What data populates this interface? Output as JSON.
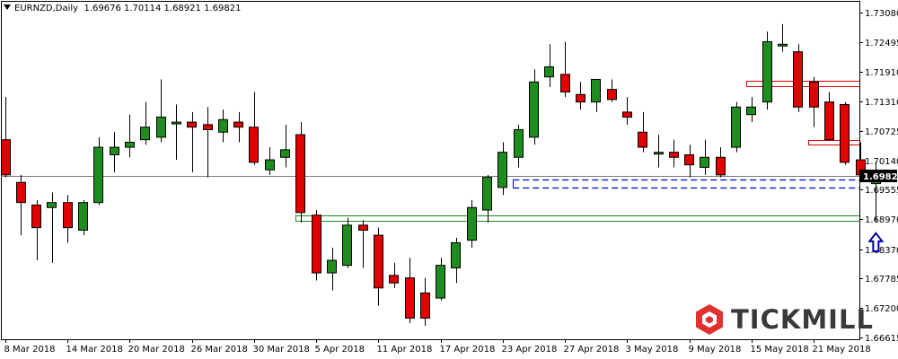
{
  "header": {
    "symbol": "EURNZD,Daily",
    "ohlc": "1.69676 1.70114 1.68921 1.69821"
  },
  "logo": {
    "text": "TICKMILL"
  },
  "colors": {
    "bull": "#1e8c1e",
    "bear": "#e00000",
    "grid": "#000000",
    "resistance": "#e00000",
    "pivot": "#0000cc",
    "support": "#1e8c1e",
    "arrow": "#0000aa",
    "price_box": "#000000"
  },
  "chart_data": {
    "type": "candlestick",
    "title": "",
    "xlabel": "",
    "ylabel": "",
    "ylim": [
      1.6645,
      1.7345
    ],
    "y_ticks": [
      "1.73080",
      "1.72495",
      "1.71910",
      "1.71310",
      "1.70725",
      "1.70140",
      "1.69555",
      "1.68970",
      "1.68370",
      "1.67785",
      "1.67200",
      "1.66615"
    ],
    "x_ticks": [
      {
        "label": "8 Mar 2018",
        "index": 0
      },
      {
        "label": "14 Mar 2018",
        "index": 4
      },
      {
        "label": "20 Mar 2018",
        "index": 8
      },
      {
        "label": "26 Mar 2018",
        "index": 12
      },
      {
        "label": "30 Mar 2018",
        "index": 16
      },
      {
        "label": "5 Apr 2018",
        "index": 20
      },
      {
        "label": "11 Apr 2018",
        "index": 24
      },
      {
        "label": "17 Apr 2018",
        "index": 28
      },
      {
        "label": "23 Apr 2018",
        "index": 32
      },
      {
        "label": "27 Apr 2018",
        "index": 36
      },
      {
        "label": "3 May 2018",
        "index": 40
      },
      {
        "label": "9 May 2018",
        "index": 44
      },
      {
        "label": "15 May 2018",
        "index": 48
      },
      {
        "label": "21 May 2018",
        "index": 52
      }
    ],
    "current_price": "1.69821",
    "candles": [
      {
        "o": 1.7055,
        "h": 1.714,
        "l": 1.698,
        "c": 1.6985
      },
      {
        "o": 1.697,
        "h": 1.6985,
        "l": 1.6865,
        "c": 1.693
      },
      {
        "o": 1.6925,
        "h": 1.6935,
        "l": 1.6815,
        "c": 1.688
      },
      {
        "o": 1.692,
        "h": 1.695,
        "l": 1.681,
        "c": 1.693
      },
      {
        "o": 1.693,
        "h": 1.6945,
        "l": 1.685,
        "c": 1.688
      },
      {
        "o": 1.6875,
        "h": 1.6935,
        "l": 1.6865,
        "c": 1.693
      },
      {
        "o": 1.693,
        "h": 1.706,
        "l": 1.6925,
        "c": 1.704
      },
      {
        "o": 1.7025,
        "h": 1.707,
        "l": 1.699,
        "c": 1.704
      },
      {
        "o": 1.704,
        "h": 1.7105,
        "l": 1.702,
        "c": 1.705
      },
      {
        "o": 1.7055,
        "h": 1.713,
        "l": 1.7045,
        "c": 1.708
      },
      {
        "o": 1.706,
        "h": 1.7175,
        "l": 1.705,
        "c": 1.71
      },
      {
        "o": 1.709,
        "h": 1.7125,
        "l": 1.7015,
        "c": 1.709
      },
      {
        "o": 1.709,
        "h": 1.711,
        "l": 1.699,
        "c": 1.708
      },
      {
        "o": 1.7085,
        "h": 1.712,
        "l": 1.698,
        "c": 1.7075
      },
      {
        "o": 1.707,
        "h": 1.7115,
        "l": 1.705,
        "c": 1.7095
      },
      {
        "o": 1.709,
        "h": 1.711,
        "l": 1.705,
        "c": 1.708
      },
      {
        "o": 1.708,
        "h": 1.715,
        "l": 1.7005,
        "c": 1.701
      },
      {
        "o": 1.6995,
        "h": 1.704,
        "l": 1.6985,
        "c": 1.7015
      },
      {
        "o": 1.702,
        "h": 1.7085,
        "l": 1.7,
        "c": 1.7035
      },
      {
        "o": 1.7065,
        "h": 1.709,
        "l": 1.689,
        "c": 1.691
      },
      {
        "o": 1.6905,
        "h": 1.6915,
        "l": 1.6775,
        "c": 1.679
      },
      {
        "o": 1.679,
        "h": 1.684,
        "l": 1.6755,
        "c": 1.6815
      },
      {
        "o": 1.6805,
        "h": 1.69,
        "l": 1.68,
        "c": 1.6885
      },
      {
        "o": 1.6885,
        "h": 1.6895,
        "l": 1.68,
        "c": 1.6875
      },
      {
        "o": 1.6865,
        "h": 1.688,
        "l": 1.6725,
        "c": 1.676
      },
      {
        "o": 1.6785,
        "h": 1.681,
        "l": 1.676,
        "c": 1.677
      },
      {
        "o": 1.678,
        "h": 1.682,
        "l": 1.669,
        "c": 1.67
      },
      {
        "o": 1.675,
        "h": 1.678,
        "l": 1.6685,
        "c": 1.67
      },
      {
        "o": 1.674,
        "h": 1.682,
        "l": 1.6735,
        "c": 1.6805
      },
      {
        "o": 1.68,
        "h": 1.686,
        "l": 1.677,
        "c": 1.685
      },
      {
        "o": 1.6855,
        "h": 1.6935,
        "l": 1.684,
        "c": 1.692
      },
      {
        "o": 1.6915,
        "h": 1.6985,
        "l": 1.689,
        "c": 1.698
      },
      {
        "o": 1.696,
        "h": 1.705,
        "l": 1.6945,
        "c": 1.703
      },
      {
        "o": 1.702,
        "h": 1.7085,
        "l": 1.7,
        "c": 1.7075
      },
      {
        "o": 1.706,
        "h": 1.7195,
        "l": 1.7045,
        "c": 1.717
      },
      {
        "o": 1.718,
        "h": 1.7245,
        "l": 1.716,
        "c": 1.72
      },
      {
        "o": 1.7185,
        "h": 1.725,
        "l": 1.714,
        "c": 1.715
      },
      {
        "o": 1.7145,
        "h": 1.717,
        "l": 1.7115,
        "c": 1.713
      },
      {
        "o": 1.713,
        "h": 1.7175,
        "l": 1.711,
        "c": 1.7175
      },
      {
        "o": 1.7155,
        "h": 1.7175,
        "l": 1.713,
        "c": 1.7135
      },
      {
        "o": 1.711,
        "h": 1.714,
        "l": 1.7085,
        "c": 1.71
      },
      {
        "o": 1.707,
        "h": 1.711,
        "l": 1.703,
        "c": 1.704
      },
      {
        "o": 1.703,
        "h": 1.7065,
        "l": 1.7,
        "c": 1.703
      },
      {
        "o": 1.703,
        "h": 1.7055,
        "l": 1.7,
        "c": 1.702
      },
      {
        "o": 1.7025,
        "h": 1.7045,
        "l": 1.698,
        "c": 1.7005
      },
      {
        "o": 1.7,
        "h": 1.7055,
        "l": 1.6985,
        "c": 1.702
      },
      {
        "o": 1.702,
        "h": 1.704,
        "l": 1.698,
        "c": 1.6985
      },
      {
        "o": 1.704,
        "h": 1.713,
        "l": 1.703,
        "c": 1.712
      },
      {
        "o": 1.7105,
        "h": 1.714,
        "l": 1.709,
        "c": 1.712
      },
      {
        "o": 1.713,
        "h": 1.727,
        "l": 1.7115,
        "c": 1.725
      },
      {
        "o": 1.7245,
        "h": 1.7285,
        "l": 1.723,
        "c": 1.7245
      },
      {
        "o": 1.723,
        "h": 1.7245,
        "l": 1.711,
        "c": 1.712
      },
      {
        "o": 1.717,
        "h": 1.718,
        "l": 1.708,
        "c": 1.712
      },
      {
        "o": 1.713,
        "h": 1.715,
        "l": 1.7055,
        "c": 1.7055
      },
      {
        "o": 1.7125,
        "h": 1.713,
        "l": 1.7005,
        "c": 1.701
      },
      {
        "o": 1.7015,
        "h": 1.705,
        "l": 1.698,
        "c": 1.6985
      },
      {
        "o": 1.69676,
        "h": 1.70114,
        "l": 1.68921,
        "c": 1.69821
      }
    ],
    "levels": [
      {
        "kind": "resistance",
        "y": 1.71715,
        "from": 48,
        "dashed": false
      },
      {
        "kind": "resistance",
        "y": 1.7162,
        "from": 48,
        "dashed": false
      },
      {
        "kind": "resistance",
        "y": 1.7054,
        "from": 52,
        "dashed": false
      },
      {
        "kind": "resistance",
        "y": 1.7045,
        "from": 52,
        "dashed": false
      },
      {
        "kind": "pivot",
        "y": 1.6975,
        "from": 33,
        "dashed": true
      },
      {
        "kind": "pivot",
        "y": 1.696,
        "from": 33,
        "dashed": true
      },
      {
        "kind": "support",
        "y": 1.6905,
        "from": 19,
        "dashed": false
      },
      {
        "kind": "support",
        "y": 1.6893,
        "from": 19,
        "dashed": false
      },
      {
        "kind": "current",
        "y": 1.69821,
        "from": 0,
        "dashed": false
      }
    ]
  }
}
